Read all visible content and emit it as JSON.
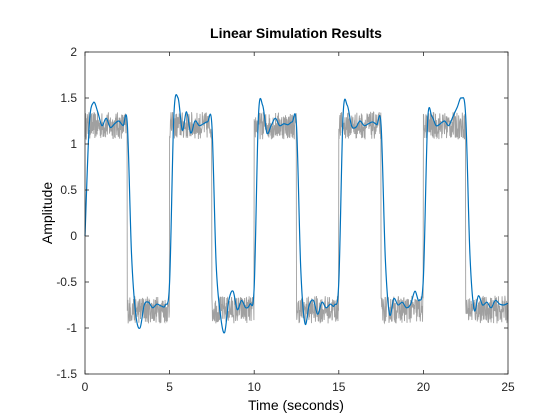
{
  "chart_data": {
    "type": "line",
    "title": "Linear Simulation Results",
    "xlabel": "Time (seconds)",
    "ylabel": "Amplitude",
    "xlim": [
      0,
      25
    ],
    "ylim": [
      -1.5,
      2
    ],
    "x_ticks": [
      0,
      5,
      10,
      15,
      20,
      25
    ],
    "x_tick_labels": [
      "0",
      "5",
      "10",
      "15",
      "20",
      "25"
    ],
    "y_ticks": [
      -1.5,
      -1,
      -0.5,
      0,
      0.5,
      1,
      1.5,
      2
    ],
    "y_tick_labels": [
      "-1.5",
      "-1",
      "-0.5",
      "0",
      "0.5",
      "1",
      "1.5",
      "2"
    ],
    "grid": false,
    "series": [
      {
        "role": "input",
        "color": "#a0a0a0",
        "description": "noisy square-wave input",
        "period": 5,
        "high_level": 1.2,
        "low_level": -0.8,
        "high_intervals": [
          [
            0,
            2.5
          ],
          [
            5,
            7.5
          ],
          [
            10,
            12.5
          ],
          [
            15,
            17.5
          ],
          [
            20,
            22.5
          ]
        ],
        "noise_amplitude": 0.15
      },
      {
        "role": "response",
        "color": "#0072bd",
        "description": "simulated system response",
        "x": [
          0,
          0.25,
          0.5,
          0.75,
          1.0,
          1.25,
          1.5,
          1.75,
          2.0,
          2.25,
          2.5,
          2.75,
          3.0,
          3.25,
          3.5,
          3.75,
          4.0,
          4.25,
          4.5,
          4.75,
          5.0,
          5.25,
          5.5,
          5.75,
          6.0,
          6.25,
          6.5,
          6.75,
          7.0,
          7.25,
          7.5,
          7.75,
          8.0,
          8.25,
          8.5,
          8.75,
          9.0,
          9.25,
          9.5,
          9.75,
          10.0,
          10.25,
          10.5,
          10.75,
          11.0,
          11.25,
          11.5,
          11.75,
          12.0,
          12.25,
          12.5,
          12.75,
          13.0,
          13.25,
          13.5,
          13.75,
          14.0,
          14.25,
          14.5,
          14.75,
          15.0,
          15.25,
          15.5,
          15.75,
          16.0,
          16.25,
          16.5,
          16.75,
          17.0,
          17.25,
          17.5,
          17.75,
          18.0,
          18.25,
          18.5,
          18.75,
          19.0,
          19.25,
          19.5,
          19.75,
          20.0,
          20.25,
          20.5,
          20.75,
          21.0,
          21.25,
          21.5,
          21.75,
          22.0,
          22.25,
          22.5,
          22.75,
          23.0,
          23.25,
          23.5,
          23.75,
          24.0,
          24.25,
          24.5,
          24.75,
          25.0
        ],
        "y": [
          0.0,
          1.2,
          1.45,
          1.35,
          1.2,
          1.28,
          1.18,
          1.22,
          1.25,
          1.2,
          1.22,
          -0.2,
          -0.85,
          -1.0,
          -0.75,
          -0.72,
          -0.78,
          -0.74,
          -0.76,
          -0.75,
          -0.5,
          1.3,
          1.5,
          1.15,
          1.35,
          1.12,
          1.25,
          1.2,
          1.22,
          1.24,
          1.2,
          -0.3,
          -0.85,
          -1.05,
          -0.7,
          -0.6,
          -0.8,
          -0.7,
          -0.78,
          -0.74,
          -0.55,
          1.3,
          1.42,
          1.12,
          1.2,
          1.28,
          1.2,
          1.22,
          1.21,
          1.24,
          1.2,
          -0.35,
          -0.95,
          -0.75,
          -0.7,
          -0.85,
          -0.72,
          -0.78,
          -0.74,
          -0.75,
          -0.5,
          1.3,
          1.42,
          1.2,
          1.18,
          1.25,
          1.2,
          1.22,
          1.24,
          1.21,
          1.2,
          -0.25,
          -0.85,
          -0.68,
          -0.75,
          -0.72,
          -0.78,
          -0.74,
          -0.6,
          -0.7,
          -0.45,
          1.25,
          1.3,
          1.2,
          1.22,
          1.25,
          1.2,
          1.3,
          1.4,
          1.5,
          1.3,
          -0.2,
          -0.8,
          -0.65,
          -0.75,
          -0.72,
          -0.78,
          -0.7,
          -0.74,
          -0.75,
          -0.73
        ]
      }
    ]
  }
}
